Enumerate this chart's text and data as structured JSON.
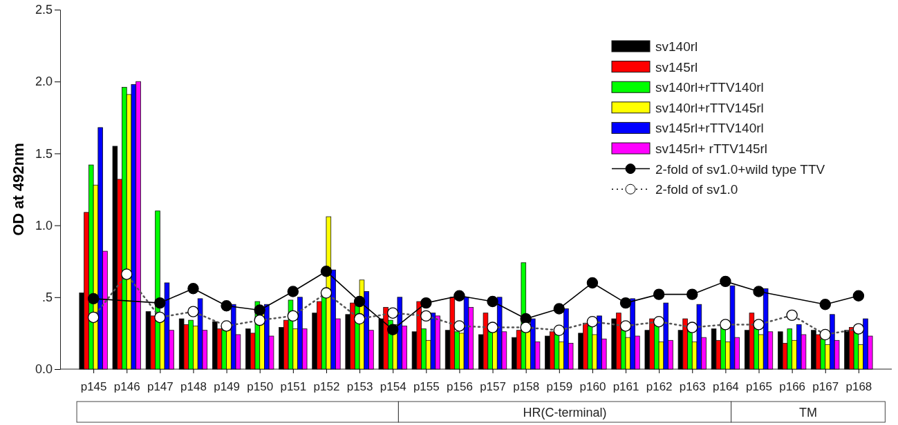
{
  "chart_data": {
    "type": "bar",
    "ylabel": "OD at 492nm",
    "categories": [
      "p145",
      "p146",
      "p147",
      "p148",
      "p149",
      "p150",
      "p151",
      "p152",
      "p153",
      "p154",
      "p155",
      "p156",
      "p157",
      "p158",
      "p159",
      "p160",
      "p161",
      "p162",
      "p163",
      "p164",
      "p165",
      "p166",
      "p167",
      "p168"
    ],
    "series": [
      {
        "name": "sv140rl",
        "color": "#000000",
        "values": [
          0.53,
          1.55,
          0.4,
          0.35,
          0.33,
          0.28,
          0.29,
          0.39,
          0.38,
          0.35,
          0.26,
          0.27,
          0.24,
          0.22,
          0.23,
          0.25,
          0.35,
          0.27,
          0.27,
          0.28,
          0.27,
          0.26,
          0.27,
          0.27
        ]
      },
      {
        "name": "sv145rl",
        "color": "#ff0000",
        "values": [
          1.09,
          1.32,
          0.37,
          0.31,
          0.28,
          0.25,
          0.34,
          0.47,
          0.46,
          0.43,
          0.47,
          0.5,
          0.39,
          0.27,
          0.26,
          0.32,
          0.39,
          0.35,
          0.35,
          0.2,
          0.39,
          0.18,
          0.24,
          0.29
        ]
      },
      {
        "name": "sv140rl+rTTV140rl",
        "color": "#00ff00",
        "values": [
          1.42,
          1.96,
          1.1,
          0.34,
          0.27,
          0.47,
          0.48,
          0.5,
          0.44,
          0.34,
          0.28,
          0.26,
          0.26,
          0.74,
          0.24,
          0.3,
          0.27,
          0.31,
          0.26,
          0.29,
          0.28,
          0.28,
          0.21,
          0.26
        ]
      },
      {
        "name": "sv140rl+rTTV145rl",
        "color": "#ffff00",
        "values": [
          1.28,
          1.91,
          0.36,
          0.3,
          0.27,
          0.4,
          0.28,
          1.06,
          0.62,
          0.31,
          0.2,
          0.25,
          0.26,
          0.26,
          0.19,
          0.24,
          0.22,
          0.19,
          0.19,
          0.19,
          0.24,
          0.2,
          0.17,
          0.17
        ]
      },
      {
        "name": "sv145rl+rTTV140rl",
        "color": "#0000ff",
        "values": [
          1.68,
          1.98,
          0.6,
          0.49,
          0.45,
          0.45,
          0.5,
          0.69,
          0.54,
          0.5,
          0.39,
          0.5,
          0.5,
          0.35,
          0.42,
          0.37,
          0.49,
          0.46,
          0.45,
          0.58,
          0.56,
          0.31,
          0.38,
          0.35
        ]
      },
      {
        "name": "sv145rl+ rTTV145rl",
        "color": "#ff00ff",
        "values": [
          0.82,
          2.0,
          0.27,
          0.27,
          0.24,
          0.23,
          0.28,
          0.35,
          0.27,
          0.3,
          0.37,
          0.43,
          0.26,
          0.19,
          0.18,
          0.21,
          0.23,
          0.2,
          0.22,
          0.22,
          0.26,
          0.24,
          0.2,
          0.23
        ]
      },
      {
        "name": "2-fold of sv1.0+wild type TTV",
        "type": "line",
        "color": "#000000",
        "line_style": "solid",
        "values": [
          0.49,
          null,
          0.46,
          0.56,
          0.44,
          0.41,
          0.54,
          0.68,
          0.47,
          0.275,
          0.46,
          0.51,
          0.47,
          0.35,
          0.42,
          0.6,
          0.46,
          0.52,
          0.52,
          0.61,
          0.54,
          null,
          0.45,
          0.51
        ]
      },
      {
        "name": "2-fold of sv1.0",
        "type": "line",
        "color": "#000000",
        "line_style": "dotted",
        "values": [
          0.36,
          0.66,
          0.36,
          0.4,
          0.3,
          0.34,
          0.37,
          0.53,
          0.35,
          0.39,
          0.37,
          0.3,
          0.29,
          0.29,
          0.27,
          0.33,
          0.3,
          0.33,
          0.29,
          0.31,
          0.31,
          0.375,
          0.24,
          0.28
        ]
      }
    ],
    "ylim": [
      0,
      2.5
    ],
    "yticks": [
      {
        "value": 0,
        "label": "0.0"
      },
      {
        "value": 0.5,
        "label": ".5"
      },
      {
        "value": 1,
        "label": "1.0"
      },
      {
        "value": 1.5,
        "label": "1.5"
      },
      {
        "value": 2,
        "label": "2.0"
      },
      {
        "value": 2.5,
        "label": "2.5"
      }
    ],
    "marker": "circle",
    "legend": "top right",
    "grid": false,
    "annotations": [
      "HR(C-terminal)",
      "TM"
    ]
  }
}
